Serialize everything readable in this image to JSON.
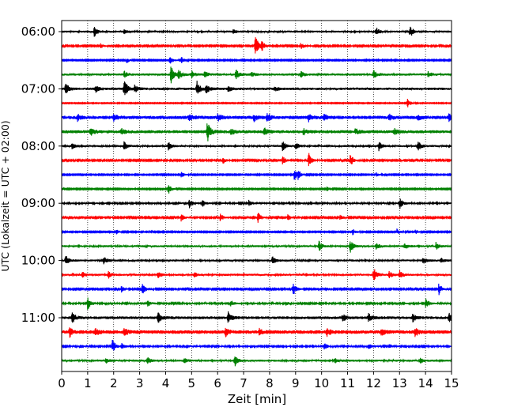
{
  "chart_data": {
    "type": "line",
    "title": "",
    "xlabel": "Zeit  [min]",
    "ylabel": "UTC (Lokalzeit = UTC + 02:00)",
    "xlim": [
      0,
      15
    ],
    "x_ticks": [
      "0",
      "1",
      "2",
      "3",
      "4",
      "5",
      "6",
      "7",
      "8",
      "9",
      "10",
      "11",
      "12",
      "13",
      "14",
      "15"
    ],
    "y_tick_labels": [
      "06:00",
      "07:00",
      "08:00",
      "09:00",
      "10:00",
      "11:00"
    ],
    "y_tick_rows": [
      0,
      4,
      8,
      12,
      16,
      20
    ],
    "grid": "vertical dotted at each minute",
    "trace_interval_min": 15,
    "color_cycle": [
      "#000000",
      "#ff0000",
      "#0000ff",
      "#008000"
    ],
    "traces": [
      {
        "start": "06:00",
        "noise": 0.18,
        "events": [
          [
            1.25,
            0.9
          ],
          [
            2.4,
            0.3
          ],
          [
            6.6,
            0.3
          ],
          [
            12.1,
            0.7
          ],
          [
            13.4,
            1.1
          ]
        ]
      },
      {
        "start": "06:15",
        "noise": 0.12,
        "events": [
          [
            1.5,
            0.4
          ],
          [
            7.45,
            2.1
          ],
          [
            7.7,
            0.8
          ],
          [
            9.2,
            0.7
          ]
        ]
      },
      {
        "start": "06:30",
        "noise": 0.1,
        "events": [
          [
            2.5,
            0.5
          ],
          [
            4.15,
            0.8
          ],
          [
            4.6,
            0.6
          ]
        ]
      },
      {
        "start": "06:45",
        "noise": 0.2,
        "events": [
          [
            2.4,
            0.6
          ],
          [
            4.2,
            1.6
          ],
          [
            4.5,
            0.9
          ],
          [
            5.0,
            0.6
          ],
          [
            5.5,
            0.6
          ],
          [
            6.7,
            0.9
          ],
          [
            7.3,
            0.4
          ],
          [
            9.2,
            0.6
          ],
          [
            12.0,
            0.8
          ],
          [
            14.1,
            0.5
          ]
        ]
      },
      {
        "start": "07:00",
        "noise": 0.22,
        "events": [
          [
            0.15,
            1.1
          ],
          [
            1.3,
            0.6
          ],
          [
            2.4,
            1.7
          ],
          [
            2.8,
            0.7
          ],
          [
            5.2,
            1.4
          ],
          [
            5.55,
            0.8
          ],
          [
            6.4,
            0.5
          ],
          [
            8.2,
            0.4
          ]
        ]
      },
      {
        "start": "07:15",
        "noise": 0.08,
        "events": [
          [
            13.3,
            0.8
          ]
        ]
      },
      {
        "start": "07:30",
        "noise": 0.3,
        "events": [
          [
            0.6,
            0.6
          ],
          [
            2.0,
            0.5
          ],
          [
            4.9,
            0.7
          ],
          [
            6.0,
            0.6
          ],
          [
            7.4,
            0.7
          ],
          [
            7.9,
            0.8
          ],
          [
            9.5,
            0.6
          ],
          [
            10.1,
            0.5
          ],
          [
            12.6,
            0.6
          ],
          [
            13.7,
            0.5
          ],
          [
            14.9,
            0.7
          ]
        ]
      },
      {
        "start": "07:45",
        "noise": 0.28,
        "events": [
          [
            1.1,
            0.8
          ],
          [
            2.3,
            0.6
          ],
          [
            5.6,
            1.9
          ],
          [
            6.5,
            0.6
          ],
          [
            7.8,
            0.6
          ],
          [
            9.3,
            0.5
          ],
          [
            11.3,
            0.5
          ],
          [
            12.8,
            0.5
          ]
        ]
      },
      {
        "start": "08:00",
        "noise": 0.18,
        "events": [
          [
            0.4,
            0.5
          ],
          [
            2.4,
            0.8
          ],
          [
            4.1,
            0.7
          ],
          [
            8.5,
            0.9
          ],
          [
            9.0,
            0.6
          ],
          [
            12.2,
            0.8
          ],
          [
            13.7,
            0.9
          ]
        ]
      },
      {
        "start": "08:15",
        "noise": 0.12,
        "events": [
          [
            6.2,
            0.6
          ],
          [
            8.5,
            0.8
          ],
          [
            9.5,
            1.4
          ],
          [
            11.1,
            1.2
          ]
        ]
      },
      {
        "start": "08:30",
        "noise": 0.1,
        "events": [
          [
            4.6,
            0.6
          ],
          [
            8.95,
            1.2
          ],
          [
            9.1,
            0.7
          ],
          [
            12.1,
            0.4
          ]
        ]
      },
      {
        "start": "08:45",
        "noise": 0.1,
        "events": [
          [
            4.1,
            1.0
          ],
          [
            10.2,
            0.4
          ]
        ]
      },
      {
        "start": "09:00",
        "noise": 0.15,
        "events": [
          [
            4.9,
            0.9
          ],
          [
            5.4,
            0.7
          ],
          [
            7.2,
            0.5
          ],
          [
            13.0,
            1.1
          ]
        ]
      },
      {
        "start": "09:15",
        "noise": 0.12,
        "events": [
          [
            4.6,
            0.7
          ],
          [
            6.1,
            0.8
          ],
          [
            7.55,
            1.0
          ],
          [
            8.7,
            0.5
          ],
          [
            10.7,
            0.5
          ]
        ]
      },
      {
        "start": "09:30",
        "noise": 0.1,
        "events": [
          [
            2.1,
            0.4
          ],
          [
            3.2,
            0.3
          ],
          [
            11.2,
            0.6
          ],
          [
            12.9,
            0.5
          ],
          [
            13.6,
            0.4
          ]
        ]
      },
      {
        "start": "09:45",
        "noise": 0.18,
        "events": [
          [
            9.9,
            0.9
          ],
          [
            11.1,
            1.1
          ],
          [
            12.1,
            0.6
          ],
          [
            13.2,
            0.5
          ],
          [
            14.4,
            0.6
          ]
        ]
      },
      {
        "start": "10:00",
        "noise": 0.18,
        "events": [
          [
            0.15,
            0.9
          ],
          [
            1.6,
            0.8
          ],
          [
            8.1,
            0.7
          ],
          [
            13.9,
            0.8
          ],
          [
            14.6,
            0.4
          ]
        ]
      },
      {
        "start": "10:15",
        "noise": 0.18,
        "events": [
          [
            0.8,
            0.5
          ],
          [
            1.8,
            0.6
          ],
          [
            3.7,
            0.5
          ],
          [
            5.1,
            0.4
          ],
          [
            12.0,
            1.3
          ],
          [
            12.6,
            0.7
          ],
          [
            13.0,
            0.8
          ]
        ]
      },
      {
        "start": "10:30",
        "noise": 0.12,
        "events": [
          [
            2.3,
            0.6
          ],
          [
            3.1,
            1.0
          ],
          [
            8.9,
            1.2
          ],
          [
            14.5,
            1.2
          ]
        ]
      },
      {
        "start": "10:45",
        "noise": 0.14,
        "events": [
          [
            1.0,
            1.2
          ],
          [
            3.3,
            0.6
          ],
          [
            6.5,
            0.6
          ],
          [
            8.6,
            0.4
          ],
          [
            14.0,
            1.0
          ]
        ]
      },
      {
        "start": "11:00",
        "noise": 0.25,
        "events": [
          [
            0.4,
            1.2
          ],
          [
            3.7,
            0.9
          ],
          [
            6.4,
            1.0
          ],
          [
            10.8,
            0.7
          ],
          [
            11.8,
            0.8
          ],
          [
            13.5,
            0.7
          ],
          [
            14.9,
            0.8
          ]
        ]
      },
      {
        "start": "11:15",
        "noise": 0.32,
        "events": [
          [
            0.3,
            0.8
          ],
          [
            1.3,
            0.6
          ],
          [
            2.4,
            0.7
          ],
          [
            6.3,
            0.7
          ],
          [
            7.6,
            0.5
          ],
          [
            10.2,
            0.7
          ],
          [
            12.3,
            0.6
          ],
          [
            13.6,
            0.7
          ]
        ]
      },
      {
        "start": "11:30",
        "noise": 0.14,
        "events": [
          [
            1.95,
            1.3
          ],
          [
            2.3,
            0.5
          ],
          [
            4.8,
            0.3
          ],
          [
            10.1,
            0.6
          ],
          [
            11.8,
            0.5
          ],
          [
            12.6,
            0.4
          ]
        ]
      },
      {
        "start": "11:45",
        "noise": 0.18,
        "events": [
          [
            1.7,
            0.5
          ],
          [
            3.3,
            0.6
          ],
          [
            4.7,
            0.5
          ],
          [
            6.65,
            1.1
          ],
          [
            10.5,
            0.4
          ],
          [
            13.8,
            0.4
          ]
        ]
      }
    ]
  }
}
